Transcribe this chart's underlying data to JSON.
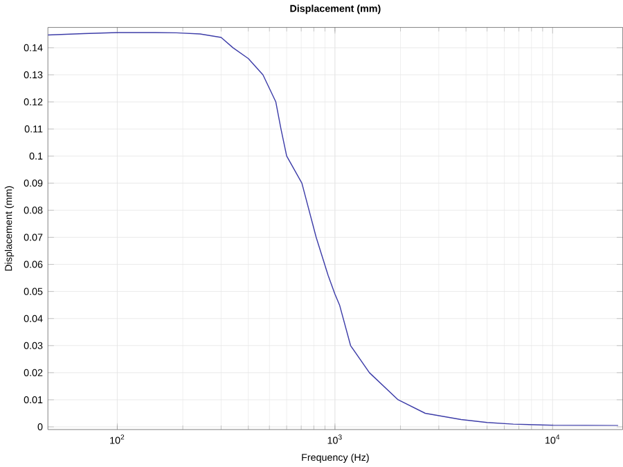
{
  "chart_data": {
    "type": "line",
    "title": "Displacement (mm)",
    "xlabel": "Frequency (Hz)",
    "ylabel": "Displacement (mm)",
    "log": "x",
    "grid": true,
    "xlim": [
      48,
      21000
    ],
    "ylim": [
      -0.001,
      0.1475
    ],
    "xticks": [
      {
        "value": 100,
        "label": "10$^{2}$"
      },
      {
        "value": 1000,
        "label": "10$^{3}$"
      },
      {
        "value": 10000,
        "label": "10$^{4}$"
      }
    ],
    "yticks": [
      0,
      0.01,
      0.02,
      0.03,
      0.04,
      0.05,
      0.06,
      0.07,
      0.08,
      0.09,
      0.1,
      0.11,
      0.12,
      0.13,
      0.14
    ],
    "series": [
      {
        "color": "#3c3ca8",
        "x": [
          48,
          70,
          100,
          150,
          187,
          240,
          300,
          340,
          400,
          467,
          535,
          565,
          600,
          705,
          820,
          930,
          1000,
          1050,
          1180,
          1440,
          1950,
          2600,
          3800,
          5000,
          6600,
          10000,
          20000
        ],
        "values": [
          0.1447,
          0.1452,
          0.1456,
          0.1456,
          0.1455,
          0.1451,
          0.1438,
          0.14,
          0.136,
          0.13,
          0.12,
          0.11,
          0.1,
          0.09,
          0.07,
          0.056,
          0.049,
          0.045,
          0.03,
          0.02,
          0.01,
          0.005,
          0.0027,
          0.0016,
          0.001,
          0.0006,
          0.0005
        ]
      }
    ]
  }
}
